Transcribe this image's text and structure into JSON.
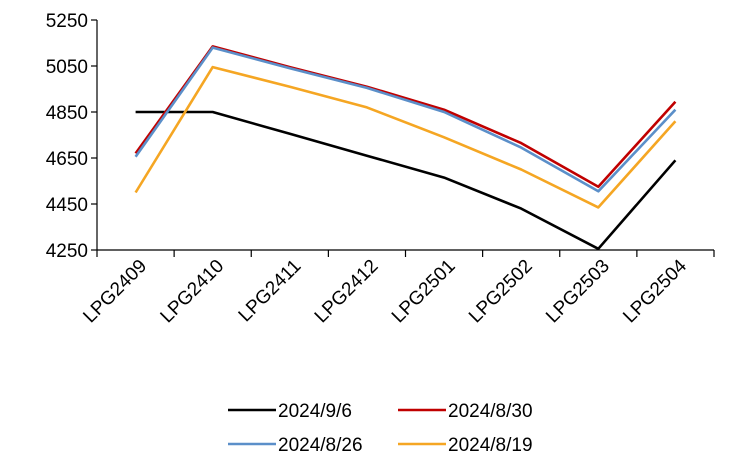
{
  "chart_data": {
    "type": "line",
    "title": "",
    "xlabel": "",
    "ylabel": "",
    "categories": [
      "LPG2409",
      "LPG2410",
      "LPG2411",
      "LPG2412",
      "LPG2501",
      "LPG2502",
      "LPG2503",
      "LPG2504"
    ],
    "ylim": [
      4250,
      5250
    ],
    "yticks": [
      4250,
      4450,
      4650,
      4850,
      5050,
      5250
    ],
    "grid": false,
    "legend_position": "bottom",
    "series": [
      {
        "name": "2024/9/6",
        "color": "#000000",
        "values": [
          4850,
          4850,
          null,
          null,
          null,
          null,
          null,
          null
        ],
        "path": [
          [
            0.5,
            4850
          ],
          [
            1.5,
            4850
          ],
          [
            2.5,
            4755
          ],
          [
            3.5,
            4660
          ],
          [
            4.5,
            4565
          ],
          [
            5.5,
            4430
          ],
          [
            6.5,
            4255
          ],
          [
            7.5,
            4640
          ]
        ]
      },
      {
        "name": "2024/8/30",
        "color": "#C00000",
        "values": [
          4670,
          5135,
          5045,
          4960,
          4860,
          4715,
          4525,
          4895
        ]
      },
      {
        "name": "2024/8/26",
        "color": "#5B8FC9",
        "values": [
          4655,
          5130,
          5040,
          4955,
          4850,
          4695,
          4505,
          4860
        ]
      },
      {
        "name": "2024/8/19",
        "color": "#F5A623",
        "values": [
          4500,
          5045,
          4960,
          4870,
          4740,
          4600,
          4435,
          4810
        ]
      }
    ]
  }
}
